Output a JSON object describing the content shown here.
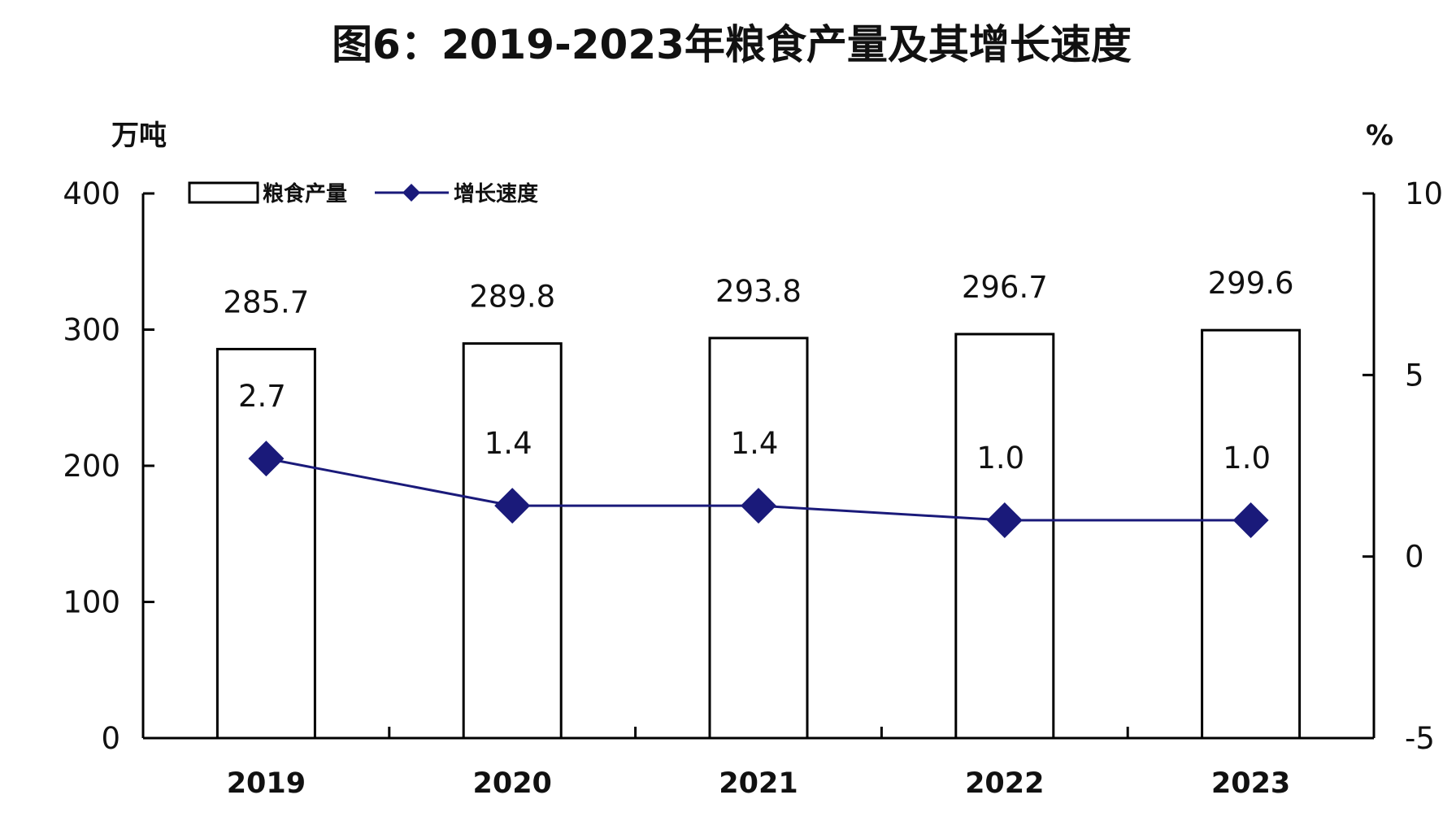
{
  "chart_data": {
    "type": "bar",
    "title": "图6：2019-2023年粮食产量及其增长速度",
    "categories": [
      "2019",
      "2020",
      "2021",
      "2022",
      "2023"
    ],
    "y_left_unit": "万吨",
    "y_right_unit": "%",
    "y_left_range": [
      0,
      400
    ],
    "y_left_ticks": [
      "0",
      "100",
      "200",
      "300",
      "400"
    ],
    "y_right_range": [
      -5,
      10
    ],
    "y_right_ticks": [
      "-5",
      "0",
      "5",
      "10"
    ],
    "grid": false,
    "legend_position": "top-left",
    "series": [
      {
        "name": "粮食产量",
        "type": "bar",
        "axis": "left",
        "values": [
          285.7,
          289.8,
          293.8,
          296.7,
          299.6
        ],
        "labels": [
          "285.7",
          "289.8",
          "293.8",
          "296.7",
          "299.6"
        ]
      },
      {
        "name": "增长速度",
        "type": "line",
        "axis": "right",
        "values": [
          2.7,
          1.4,
          1.4,
          1.0,
          1.0
        ],
        "labels": [
          "2.7",
          "1.4",
          "1.4",
          "1.0",
          "1.0"
        ]
      }
    ],
    "colors": {
      "bar_fill": "#ffffff",
      "bar_stroke": "#000000",
      "line": "#1a1a7a",
      "marker": "#1a1a7a"
    }
  }
}
